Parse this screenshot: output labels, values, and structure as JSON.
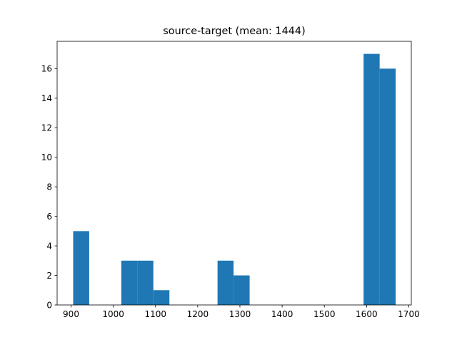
{
  "chart_data": {
    "type": "bar",
    "title": "source-target (mean: 1444)",
    "xlabel": "",
    "ylabel": "",
    "bar_color": "#1f77b4",
    "xlim": [
      867,
      1706
    ],
    "ylim": [
      0,
      17.85
    ],
    "x_ticks": [
      900,
      1000,
      1100,
      1200,
      1300,
      1400,
      1500,
      1600,
      1700
    ],
    "x_tick_labels": [
      "900",
      "1000",
      "1100",
      "1200",
      "1300",
      "1400",
      "1500",
      "1600",
      "1700"
    ],
    "y_ticks": [
      0,
      2,
      4,
      6,
      8,
      10,
      12,
      14,
      16
    ],
    "y_tick_labels": [
      "0",
      "2",
      "4",
      "6",
      "8",
      "10",
      "12",
      "14",
      "16"
    ],
    "grid": false,
    "bins": [
      {
        "x0": 905,
        "x1": 943,
        "count": 5
      },
      {
        "x0": 1019,
        "x1": 1057,
        "count": 3
      },
      {
        "x0": 1057,
        "x1": 1095,
        "count": 3
      },
      {
        "x0": 1095,
        "x1": 1133,
        "count": 1
      },
      {
        "x0": 1247,
        "x1": 1285,
        "count": 3
      },
      {
        "x0": 1285,
        "x1": 1323,
        "count": 2
      },
      {
        "x0": 1593,
        "x1": 1631,
        "count": 17
      },
      {
        "x0": 1631,
        "x1": 1669,
        "count": 16
      }
    ]
  }
}
